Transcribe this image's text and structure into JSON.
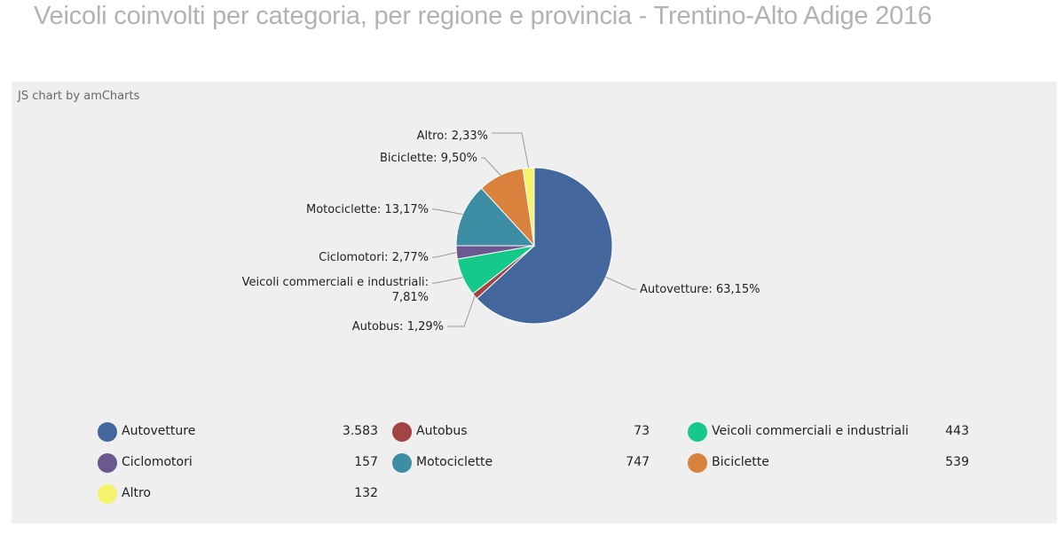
{
  "page": {
    "title": "Veicoli coinvolti per categoria, per regione e provincia - Trentino-Alto Adige 2016",
    "credit": "JS chart by amCharts"
  },
  "chart_data": {
    "type": "pie",
    "title": "",
    "legend_position": "bottom",
    "slices": [
      {
        "name": "Autovetture",
        "value": 3583,
        "value_label": "3.583",
        "percent_label": "63,15%",
        "color": "#43679c"
      },
      {
        "name": "Autobus",
        "value": 73,
        "value_label": "73",
        "percent_label": "1,29%",
        "color": "#a24344"
      },
      {
        "name": "Veicoli commerciali e industriali",
        "value": 443,
        "value_label": "443",
        "percent_label": "7,81%",
        "color": "#15c98b"
      },
      {
        "name": "Ciclomotori",
        "value": 157,
        "value_label": "157",
        "percent_label": "2,77%",
        "color": "#6a5891"
      },
      {
        "name": "Motociclette",
        "value": 747,
        "value_label": "747",
        "percent_label": "13,17%",
        "color": "#3d8ea5"
      },
      {
        "name": "Biciclette",
        "value": 539,
        "value_label": "539",
        "percent_label": "9,50%",
        "color": "#d8823e"
      },
      {
        "name": "Altro",
        "value": 132,
        "value_label": "132",
        "percent_label": "2,33%",
        "color": "#f4f36b"
      }
    ]
  }
}
